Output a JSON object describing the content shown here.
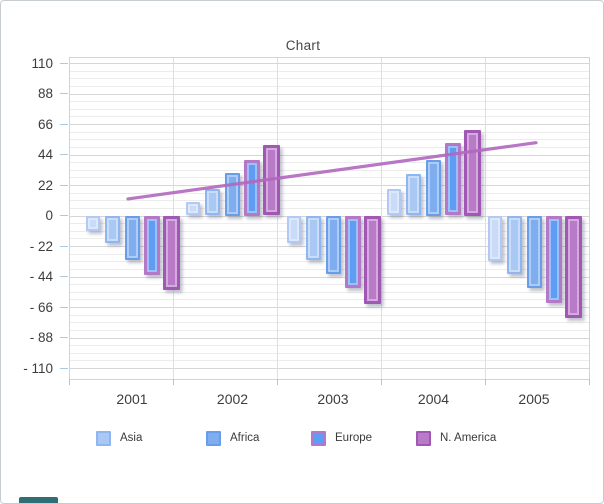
{
  "chart_data": {
    "type": "bar",
    "title": "Chart",
    "categories": [
      "2001",
      "2002",
      "2003",
      "2004",
      "2005"
    ],
    "series": [
      {
        "name": "",
        "in_legend": false,
        "fill": "#c9dbf8",
        "border": "#b1c9f4",
        "values": [
          -11,
          10,
          -20,
          19,
          -33
        ]
      },
      {
        "name": "Asia",
        "in_legend": true,
        "fill": "#a9c8f4",
        "border": "#8fb6f0",
        "values": [
          -20,
          19,
          -32,
          30,
          -42
        ]
      },
      {
        "name": "Africa",
        "in_legend": true,
        "fill": "#7eadf0",
        "border": "#689dec",
        "values": [
          -32,
          31,
          -42,
          40,
          -52
        ]
      },
      {
        "name": "Europe",
        "in_legend": true,
        "fill": "#5f9cf4",
        "border": "#b379c7",
        "values": [
          -43,
          40,
          -52,
          52,
          -63
        ]
      },
      {
        "name": "N. America",
        "in_legend": true,
        "fill": "#b97ac8",
        "border": "#a158b4",
        "values": [
          -54,
          51,
          -64,
          62,
          -74
        ]
      }
    ],
    "trend_line": {
      "color": "#b168be",
      "values": [
        12,
        22,
        32,
        42,
        52.5
      ]
    },
    "y_axis": {
      "tick_labels": [
        "110",
        "88",
        "66",
        "44",
        "22",
        "0",
        "- 22",
        "- 44",
        "- 66",
        "- 88",
        "- 110"
      ],
      "tick_values": [
        110,
        88,
        66,
        44,
        22,
        0,
        -22,
        -44,
        -66,
        -88,
        -110
      ],
      "min": -110,
      "max": 110,
      "major_step": 22,
      "minor_step": 5.5
    },
    "grid": {
      "horizontal": true,
      "vertical": true
    },
    "legend_position": "bottom"
  },
  "decor": {
    "bottom_left_fragment_color": "#2e6e74"
  }
}
